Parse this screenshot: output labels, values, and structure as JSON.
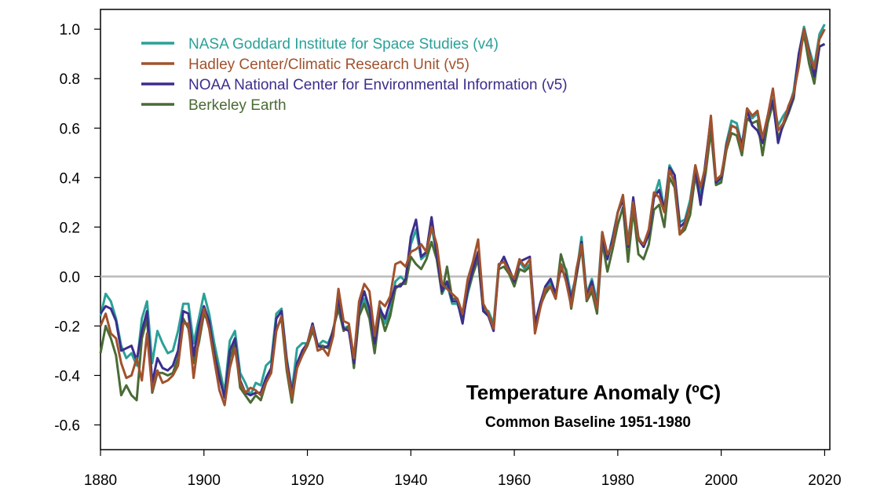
{
  "chart_data": {
    "type": "line",
    "title": "Temperature Anomaly (ºC)",
    "subtitle": "Common Baseline 1951-1980",
    "xlim": [
      1880,
      2021
    ],
    "ylim": [
      -0.7,
      1.08
    ],
    "x_ticks": [
      1880,
      1900,
      1920,
      1940,
      1960,
      1980,
      2000,
      2020
    ],
    "y_ticks": [
      -0.6,
      -0.4,
      -0.2,
      0.0,
      0.2,
      0.4,
      0.6,
      0.8,
      1.0
    ],
    "y_tick_labels": [
      "-0.6",
      "-0.4",
      "-0.2",
      "0.0",
      "0.2",
      "0.4",
      "0.6",
      "0.8",
      "1.0"
    ],
    "x_tick_labels": [
      "1880",
      "1900",
      "1920",
      "1940",
      "1960",
      "1980",
      "2000",
      "2020"
    ],
    "zero_line": true,
    "zero_line_color": "#bbbbbb",
    "legend_placement": "top-left",
    "x_start": 1880,
    "series": [
      {
        "name": "NASA Goddard Institute for Space Studies (v4)",
        "color": "#2aa198",
        "values": [
          -0.16,
          -0.07,
          -0.1,
          -0.17,
          -0.28,
          -0.33,
          -0.31,
          -0.36,
          -0.17,
          -0.1,
          -0.35,
          -0.22,
          -0.27,
          -0.31,
          -0.3,
          -0.22,
          -0.11,
          -0.11,
          -0.27,
          -0.17,
          -0.07,
          -0.15,
          -0.27,
          -0.37,
          -0.47,
          -0.26,
          -0.22,
          -0.39,
          -0.43,
          -0.48,
          -0.43,
          -0.44,
          -0.36,
          -0.34,
          -0.15,
          -0.13,
          -0.33,
          -0.46,
          -0.29,
          -0.27,
          -0.27,
          -0.19,
          -0.28,
          -0.26,
          -0.27,
          -0.22,
          -0.1,
          -0.21,
          -0.2,
          -0.36,
          -0.16,
          -0.09,
          -0.16,
          -0.29,
          -0.12,
          -0.19,
          -0.14,
          -0.02,
          0.0,
          -0.02,
          0.13,
          0.19,
          0.07,
          0.09,
          0.2,
          0.09,
          -0.07,
          -0.03,
          -0.11,
          -0.11,
          -0.17,
          -0.07,
          0.01,
          0.08,
          -0.13,
          -0.14,
          -0.19,
          0.05,
          0.06,
          0.03,
          -0.03,
          0.06,
          0.03,
          0.05,
          -0.2,
          -0.11,
          -0.06,
          -0.02,
          -0.08,
          0.05,
          0.03,
          -0.08,
          0.01,
          0.16,
          -0.07,
          -0.01,
          -0.1,
          0.18,
          0.07,
          0.16,
          0.26,
          0.32,
          0.14,
          0.31,
          0.16,
          0.12,
          0.18,
          0.32,
          0.39,
          0.27,
          0.45,
          0.41,
          0.22,
          0.23,
          0.31,
          0.45,
          0.33,
          0.46,
          0.61,
          0.38,
          0.39,
          0.54,
          0.63,
          0.62,
          0.53,
          0.68,
          0.64,
          0.66,
          0.54,
          0.65,
          0.72,
          0.61,
          0.65,
          0.68,
          0.75,
          0.9,
          1.01,
          0.92,
          0.85,
          0.98,
          1.02
        ]
      },
      {
        "name": "Hadley Center/Climatic Research Unit (v5)",
        "color": "#a0522d",
        "values": [
          -0.2,
          -0.15,
          -0.23,
          -0.25,
          -0.35,
          -0.41,
          -0.4,
          -0.33,
          -0.42,
          -0.23,
          -0.46,
          -0.38,
          -0.43,
          -0.42,
          -0.4,
          -0.36,
          -0.19,
          -0.19,
          -0.41,
          -0.25,
          -0.13,
          -0.21,
          -0.34,
          -0.46,
          -0.52,
          -0.37,
          -0.29,
          -0.43,
          -0.47,
          -0.45,
          -0.46,
          -0.48,
          -0.43,
          -0.39,
          -0.22,
          -0.16,
          -0.36,
          -0.49,
          -0.37,
          -0.32,
          -0.27,
          -0.2,
          -0.3,
          -0.29,
          -0.32,
          -0.24,
          -0.05,
          -0.18,
          -0.19,
          -0.33,
          -0.1,
          -0.03,
          -0.06,
          -0.24,
          -0.1,
          -0.12,
          -0.08,
          0.05,
          0.06,
          0.04,
          0.1,
          0.11,
          0.13,
          0.1,
          0.2,
          0.13,
          -0.03,
          -0.05,
          -0.07,
          -0.09,
          -0.15,
          -0.01,
          0.06,
          0.15,
          -0.11,
          -0.15,
          -0.21,
          0.05,
          0.06,
          0.02,
          -0.01,
          0.07,
          0.04,
          0.07,
          -0.23,
          -0.13,
          -0.05,
          -0.04,
          -0.09,
          0.05,
          -0.02,
          -0.12,
          0.03,
          0.13,
          -0.09,
          -0.04,
          -0.13,
          0.18,
          0.09,
          0.13,
          0.26,
          0.33,
          0.13,
          0.3,
          0.15,
          0.13,
          0.19,
          0.34,
          0.32,
          0.26,
          0.43,
          0.38,
          0.17,
          0.21,
          0.29,
          0.45,
          0.36,
          0.45,
          0.65,
          0.39,
          0.41,
          0.52,
          0.61,
          0.6,
          0.51,
          0.68,
          0.65,
          0.67,
          0.56,
          0.65,
          0.76,
          0.59,
          0.62,
          0.69,
          0.74,
          0.85,
          1.0,
          0.9,
          0.84,
          0.96,
          1.0
        ]
      },
      {
        "name": "NOAA National Center for Environmental Information (v5)",
        "color": "#3b2e8c",
        "values": [
          -0.15,
          -0.12,
          -0.13,
          -0.18,
          -0.3,
          -0.29,
          -0.28,
          -0.34,
          -0.22,
          -0.14,
          -0.43,
          -0.33,
          -0.37,
          -0.38,
          -0.36,
          -0.3,
          -0.14,
          -0.15,
          -0.32,
          -0.2,
          -0.12,
          -0.18,
          -0.32,
          -0.41,
          -0.49,
          -0.3,
          -0.25,
          -0.42,
          -0.47,
          -0.48,
          -0.47,
          -0.47,
          -0.41,
          -0.37,
          -0.17,
          -0.14,
          -0.34,
          -0.47,
          -0.35,
          -0.3,
          -0.27,
          -0.19,
          -0.28,
          -0.29,
          -0.28,
          -0.22,
          -0.09,
          -0.21,
          -0.22,
          -0.35,
          -0.13,
          -0.06,
          -0.13,
          -0.27,
          -0.13,
          -0.17,
          -0.1,
          -0.04,
          -0.04,
          -0.01,
          0.16,
          0.23,
          0.08,
          0.1,
          0.24,
          0.09,
          -0.06,
          -0.02,
          -0.1,
          -0.1,
          -0.19,
          -0.05,
          0.03,
          0.1,
          -0.14,
          -0.16,
          -0.22,
          0.04,
          0.08,
          0.03,
          -0.02,
          0.06,
          0.07,
          0.08,
          -0.19,
          -0.11,
          -0.04,
          -0.01,
          -0.07,
          0.03,
          0.0,
          -0.09,
          0.01,
          0.14,
          -0.08,
          -0.02,
          -0.13,
          0.16,
          0.07,
          0.15,
          0.26,
          0.31,
          0.12,
          0.32,
          0.15,
          0.12,
          0.17,
          0.32,
          0.35,
          0.27,
          0.44,
          0.41,
          0.2,
          0.22,
          0.29,
          0.44,
          0.29,
          0.47,
          0.64,
          0.38,
          0.4,
          0.53,
          0.61,
          0.6,
          0.53,
          0.67,
          0.61,
          0.59,
          0.54,
          0.65,
          0.71,
          0.54,
          0.62,
          0.67,
          0.73,
          0.9,
          1.0,
          0.91,
          0.81,
          0.93,
          0.94
        ]
      },
      {
        "name": "Berkeley Earth",
        "color": "#4a6b35",
        "values": [
          -0.31,
          -0.2,
          -0.25,
          -0.32,
          -0.48,
          -0.44,
          -0.48,
          -0.5,
          -0.25,
          -0.17,
          -0.47,
          -0.39,
          -0.39,
          -0.4,
          -0.39,
          -0.33,
          -0.17,
          -0.21,
          -0.35,
          -0.27,
          -0.15,
          -0.19,
          -0.3,
          -0.4,
          -0.49,
          -0.33,
          -0.27,
          -0.45,
          -0.48,
          -0.51,
          -0.48,
          -0.5,
          -0.43,
          -0.37,
          -0.21,
          -0.17,
          -0.38,
          -0.51,
          -0.36,
          -0.32,
          -0.28,
          -0.22,
          -0.28,
          -0.28,
          -0.29,
          -0.21,
          -0.13,
          -0.22,
          -0.2,
          -0.37,
          -0.16,
          -0.11,
          -0.17,
          -0.31,
          -0.14,
          -0.22,
          -0.16,
          -0.05,
          -0.03,
          -0.03,
          0.08,
          0.05,
          0.03,
          0.07,
          0.14,
          0.07,
          -0.07,
          0.04,
          -0.09,
          -0.09,
          -0.17,
          -0.06,
          0.01,
          0.07,
          -0.14,
          -0.15,
          -0.2,
          0.03,
          0.04,
          0.01,
          -0.04,
          0.03,
          0.02,
          0.04,
          -0.21,
          -0.12,
          -0.07,
          -0.04,
          -0.09,
          0.09,
          0.02,
          -0.13,
          0.0,
          0.12,
          -0.1,
          -0.06,
          -0.15,
          0.14,
          0.02,
          0.11,
          0.21,
          0.28,
          0.06,
          0.27,
          0.09,
          0.07,
          0.13,
          0.27,
          0.29,
          0.2,
          0.4,
          0.36,
          0.17,
          0.19,
          0.25,
          0.41,
          0.3,
          0.42,
          0.59,
          0.37,
          0.38,
          0.51,
          0.58,
          0.57,
          0.49,
          0.64,
          0.62,
          0.63,
          0.49,
          0.62,
          0.7,
          0.56,
          0.61,
          0.66,
          0.72,
          0.89,
          0.98,
          0.86,
          0.78,
          0.93,
          0.94
        ]
      }
    ]
  }
}
